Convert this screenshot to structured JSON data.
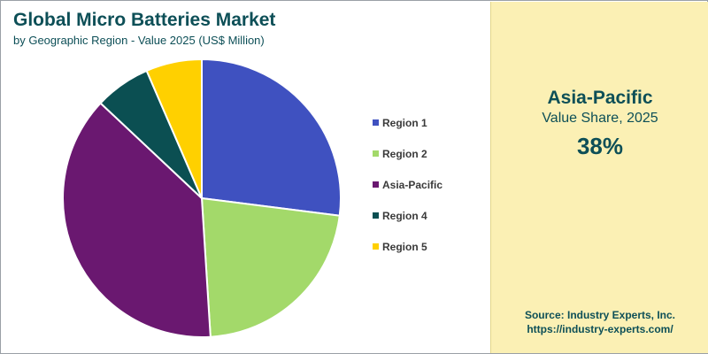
{
  "chart_data": {
    "type": "pie",
    "title": "Global Micro Batteries Market",
    "subtitle": "by Geographic Region - Value 2025 (US$ Million)",
    "categories": [
      "Region 1",
      "Region 2",
      "Asia-Pacific",
      "Region 4",
      "Region 5"
    ],
    "values": [
      27,
      22,
      38,
      6.5,
      6.5
    ],
    "colors": [
      "#3f51c0",
      "#a3d96a",
      "#6a1870",
      "#0b4f52",
      "#ffd000"
    ],
    "legend_position": "right"
  },
  "highlight": {
    "region": "Asia-Pacific",
    "label": "Value Share, 2025",
    "value": "38%"
  },
  "source": {
    "text": "Source: Industry Experts, Inc.",
    "url": "https://industry-experts.com/"
  },
  "colors": {
    "panel_background": "#fbf0b4",
    "title_color": "#0d4f57"
  }
}
